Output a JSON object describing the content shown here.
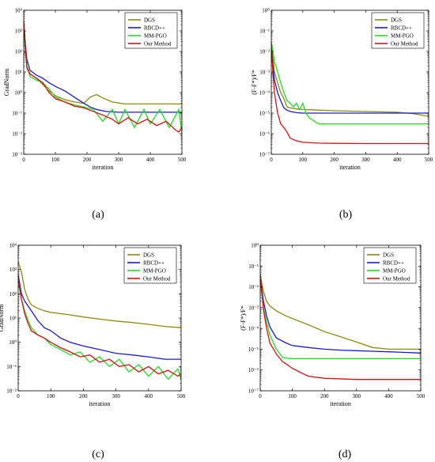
{
  "chart_data": [
    {
      "panel": "a",
      "sublabel": "(a)",
      "type": "line",
      "xlabel": "iteration",
      "ylabel": "GradNorm",
      "xlim": [
        0,
        500
      ],
      "xticks": [
        "0",
        "100",
        "200",
        "300",
        "400",
        "500"
      ],
      "ylog": true,
      "ylim_exp": [
        -3,
        4
      ],
      "legend": "top-right",
      "series": [
        {
          "name": "DGS",
          "color": "#8b8b0f",
          "x": [
            0,
            5,
            10,
            20,
            40,
            60,
            80,
            100,
            130,
            160,
            190,
            210,
            230,
            250,
            280,
            320,
            400,
            500
          ],
          "y": [
            3000,
            300,
            20,
            8,
            5,
            2.5,
            1.2,
            0.7,
            0.45,
            0.35,
            0.3,
            0.6,
            0.8,
            0.55,
            0.35,
            0.28,
            0.28,
            0.28
          ]
        },
        {
          "name": "RBCD++",
          "color": "#1a1adb",
          "x": [
            0,
            5,
            10,
            20,
            40,
            60,
            80,
            100,
            130,
            160,
            190,
            210,
            230,
            260,
            300,
            400,
            500
          ],
          "y": [
            2000,
            200,
            40,
            12,
            7,
            5,
            3,
            2,
            1.2,
            0.6,
            0.3,
            0.2,
            0.15,
            0.12,
            0.11,
            0.11,
            0.11
          ]
        },
        {
          "name": "MM-PGO",
          "color": "#22dd22",
          "x": [
            0,
            5,
            10,
            20,
            40,
            60,
            80,
            100,
            130,
            160,
            190,
            220,
            250,
            280,
            300,
            320,
            350,
            380,
            400,
            430,
            460,
            490,
            500
          ],
          "y": [
            1000,
            100,
            20,
            6,
            4,
            3,
            1.5,
            0.6,
            0.35,
            0.25,
            0.2,
            0.15,
            0.04,
            0.15,
            0.03,
            0.15,
            0.02,
            0.15,
            0.03,
            0.15,
            0.02,
            0.15,
            0.01
          ]
        },
        {
          "name": "Our Method",
          "color": "#dd1111",
          "x": [
            0,
            5,
            10,
            20,
            40,
            60,
            80,
            100,
            130,
            160,
            190,
            220,
            250,
            280,
            300,
            330,
            360,
            390,
            420,
            450,
            480,
            490,
            500
          ],
          "y": [
            3000,
            150,
            15,
            8,
            5,
            3,
            1,
            0.5,
            0.35,
            0.22,
            0.18,
            0.12,
            0.08,
            0.05,
            0.03,
            0.06,
            0.03,
            0.05,
            0.025,
            0.04,
            0.015,
            0.012,
            0.02
          ]
        }
      ]
    },
    {
      "panel": "b",
      "sublabel": "(b)",
      "type": "line",
      "xlabel": "iteration",
      "ylabel": "(F-F*)/F*",
      "xlim": [
        0,
        500
      ],
      "xticks": [
        "0",
        "100",
        "200",
        "300",
        "400",
        "500"
      ],
      "ylog": true,
      "ylim_exp": [
        -7,
        0
      ],
      "legend": "top-right",
      "series": [
        {
          "name": "DGS",
          "color": "#8b8b0f",
          "x": [
            0,
            5,
            10,
            20,
            30,
            40,
            50,
            60,
            80,
            100,
            150,
            200,
            300,
            400,
            450,
            500
          ],
          "y": [
            0.02,
            0.005,
            0.001,
            0.0003,
            0.0001,
            5e-05,
            2e-05,
            1.8e-05,
            1.6e-05,
            1.5e-05,
            1.4e-05,
            1.3e-05,
            1.2e-05,
            1.1e-05,
            9.5e-06,
            7e-06
          ]
        },
        {
          "name": "RBCD++",
          "color": "#1a1adb",
          "x": [
            0,
            5,
            10,
            20,
            30,
            40,
            50,
            60,
            80,
            100,
            150,
            200,
            300,
            400,
            500
          ],
          "y": [
            0.01,
            0.002,
            0.0004,
            0.0001,
            4e-05,
            1.8e-05,
            1.4e-05,
            1.2e-05,
            1.05e-05,
            1e-05,
            1e-05,
            1e-05,
            1e-05,
            1e-05,
            1e-05
          ]
        },
        {
          "name": "MM-PGO",
          "color": "#22dd22",
          "x": [
            0,
            5,
            10,
            15,
            20,
            30,
            40,
            50,
            60,
            70,
            80,
            90,
            100,
            110,
            120,
            150,
            200,
            300,
            400,
            500
          ],
          "y": [
            0.03,
            0.01,
            0.003,
            0.002,
            0.001,
            0.0003,
            0.0001,
            4e-05,
            3e-05,
            2e-05,
            3e-05,
            1.5e-05,
            3e-05,
            1e-05,
            6e-06,
            3e-06,
            3e-06,
            3e-06,
            3e-06,
            3e-06
          ]
        },
        {
          "name": "Our Method",
          "color": "#dd1111",
          "x": [
            0,
            5,
            10,
            15,
            20,
            30,
            40,
            50,
            60,
            80,
            100,
            150,
            200,
            300,
            400,
            500
          ],
          "y": [
            0.02,
            0.001,
            0.0001,
            3e-05,
            1e-05,
            3e-06,
            2e-06,
            1.2e-06,
            6e-07,
            4.5e-07,
            3.8e-07,
            3.5e-07,
            3.4e-07,
            3.3e-07,
            3.3e-07,
            3.3e-07
          ]
        }
      ]
    },
    {
      "panel": "c",
      "sublabel": "(c)",
      "type": "line",
      "xlabel": "iteration",
      "ylabel": "GradNorm",
      "xlim": [
        0,
        500
      ],
      "xticks": [
        "0",
        "100",
        "200",
        "300",
        "400",
        "500"
      ],
      "ylog": true,
      "ylim_exp": [
        -2,
        4
      ],
      "legend": "top-right",
      "series": [
        {
          "name": "DGS",
          "color": "#8b8b0f",
          "x": [
            0,
            10,
            20,
            30,
            40,
            60,
            80,
            100,
            150,
            200,
            250,
            300,
            350,
            400,
            450,
            500
          ],
          "y": [
            2000,
            800,
            150,
            60,
            35,
            25,
            20,
            17,
            14,
            11,
            9,
            7.5,
            6.5,
            5.5,
            4.5,
            4
          ]
        },
        {
          "name": "RBCD++",
          "color": "#1a1adb",
          "x": [
            0,
            10,
            20,
            40,
            60,
            80,
            100,
            130,
            160,
            200,
            250,
            300,
            350,
            400,
            450,
            500
          ],
          "y": [
            600,
            100,
            50,
            20,
            8,
            4,
            3,
            1.5,
            1,
            0.7,
            0.5,
            0.35,
            0.3,
            0.25,
            0.2,
            0.2
          ]
        },
        {
          "name": "MM-PGO",
          "color": "#22dd22",
          "x": [
            0,
            10,
            20,
            30,
            40,
            60,
            80,
            100,
            130,
            160,
            190,
            220,
            250,
            280,
            310,
            340,
            370,
            400,
            430,
            460,
            490,
            500
          ],
          "y": [
            300,
            60,
            20,
            8,
            4,
            2,
            1.5,
            0.8,
            0.5,
            0.3,
            0.4,
            0.15,
            0.25,
            0.1,
            0.2,
            0.06,
            0.12,
            0.04,
            0.1,
            0.03,
            0.08,
            0.03
          ]
        },
        {
          "name": "Our Method",
          "color": "#dd1111",
          "x": [
            0,
            10,
            20,
            30,
            40,
            60,
            80,
            100,
            130,
            160,
            190,
            220,
            250,
            280,
            310,
            340,
            370,
            400,
            430,
            460,
            490,
            500
          ],
          "y": [
            500,
            60,
            15,
            6,
            3,
            2,
            1.5,
            1,
            0.6,
            0.4,
            0.25,
            0.3,
            0.15,
            0.2,
            0.1,
            0.12,
            0.06,
            0.1,
            0.05,
            0.07,
            0.04,
            0.05
          ]
        }
      ]
    },
    {
      "panel": "d",
      "sublabel": "(d)",
      "type": "line",
      "xlabel": "iteration",
      "ylabel": "(F-F*)/F*",
      "xlim": [
        0,
        500
      ],
      "xticks": [
        "0",
        "100",
        "200",
        "300",
        "400",
        "500"
      ],
      "ylog": true,
      "ylim_exp": [
        -7,
        0
      ],
      "legend": "top-right",
      "series": [
        {
          "name": "DGS",
          "color": "#8b8b0f",
          "x": [
            0,
            5,
            10,
            20,
            30,
            50,
            80,
            100,
            150,
            200,
            250,
            300,
            350,
            400,
            450,
            500
          ],
          "y": [
            0.04,
            0.015,
            0.006,
            0.002,
            0.0012,
            0.0007,
            0.0004,
            0.0003,
            0.00015,
            7e-05,
            4e-05,
            2.2e-05,
            1.2e-05,
            1e-05,
            1e-05,
            1e-05
          ]
        },
        {
          "name": "RBCD++",
          "color": "#1a1adb",
          "x": [
            0,
            5,
            10,
            20,
            30,
            50,
            80,
            100,
            150,
            200,
            250,
            300,
            350,
            400,
            450,
            500
          ],
          "y": [
            0.03,
            0.008,
            0.002,
            0.0004,
            0.00012,
            3.5e-05,
            2e-05,
            1.5e-05,
            1.2e-05,
            1e-05,
            9e-06,
            8.5e-06,
            8e-06,
            7.5e-06,
            7e-06,
            6.5e-06
          ]
        },
        {
          "name": "MM-PGO",
          "color": "#22dd22",
          "x": [
            0,
            5,
            10,
            20,
            30,
            50,
            70,
            80,
            100,
            150,
            200,
            300,
            400,
            500
          ],
          "y": [
            0.03,
            0.005,
            0.001,
            0.0002,
            5e-05,
            1e-05,
            4e-06,
            3.8e-06,
            3.5e-06,
            3.5e-06,
            3.5e-06,
            3.5e-06,
            3.5e-06,
            3.5e-06
          ]
        },
        {
          "name": "Our Method",
          "color": "#dd1111",
          "x": [
            0,
            5,
            10,
            20,
            30,
            50,
            70,
            80,
            100,
            130,
            150,
            200,
            300,
            400,
            500
          ],
          "y": [
            0.04,
            0.006,
            0.0008,
            0.0001,
            2e-05,
            6e-06,
            2.5e-06,
            2e-06,
            1.2e-06,
            7e-07,
            5e-07,
            4e-07,
            3.5e-07,
            3.5e-07,
            3.5e-07
          ]
        }
      ]
    }
  ]
}
